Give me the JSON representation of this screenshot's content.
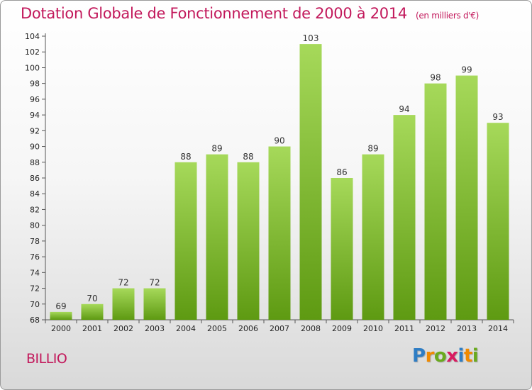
{
  "header": {
    "title": "Dotation Globale de Fonctionnement de 2000 à 2014",
    "unit": "(en milliers d'€)"
  },
  "footer": {
    "commune": "BILLIO",
    "logo_letters": [
      "P",
      "r",
      "o",
      "x",
      "i",
      "t",
      "i"
    ],
    "logo_colors": [
      "#2e7dc4",
      "#f08a00",
      "#6aaa1e",
      "#d81b60",
      "#2e7dc4",
      "#f08a00",
      "#6aaa1e"
    ]
  },
  "colors": {
    "title": "#c2185b",
    "bar_top": "#a6d95a",
    "bar_bottom": "#5e9a12"
  },
  "chart_data": {
    "type": "bar",
    "title": "Dotation Globale de Fonctionnement de 2000 à 2014",
    "subtitle": "(en milliers d'€)",
    "xlabel": "",
    "ylabel": "",
    "categories": [
      "2000",
      "2001",
      "2002",
      "2003",
      "2004",
      "2005",
      "2006",
      "2007",
      "2008",
      "2009",
      "2010",
      "2011",
      "2012",
      "2013",
      "2014"
    ],
    "values": [
      69,
      70,
      72,
      72,
      88,
      89,
      88,
      90,
      103,
      86,
      89,
      94,
      98,
      99,
      93
    ],
    "ylim": [
      68,
      104
    ],
    "yticks": [
      68,
      70,
      72,
      74,
      76,
      78,
      80,
      82,
      84,
      86,
      88,
      90,
      92,
      94,
      96,
      98,
      100,
      102,
      104
    ],
    "grid": false,
    "legend": "none"
  }
}
